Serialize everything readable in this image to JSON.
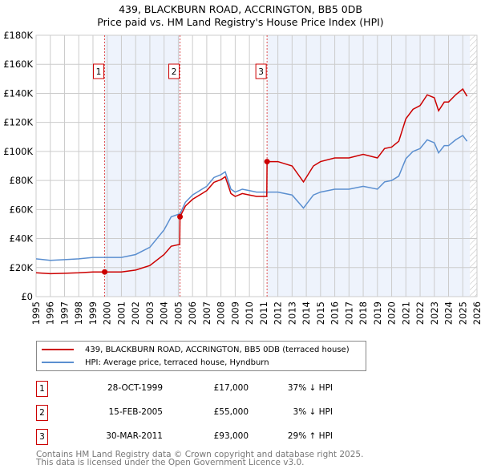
{
  "chart_data": {
    "type": "line",
    "title": "439, BLACKBURN ROAD, ACCRINGTON, BB5 0DB",
    "subtitle": "Price paid vs. HM Land Registry's House Price Index (HPI)",
    "xlim": [
      1995,
      2026
    ],
    "ylim": [
      0,
      180000
    ],
    "y_ticks": [
      0,
      20000,
      40000,
      60000,
      80000,
      100000,
      120000,
      140000,
      160000,
      180000
    ],
    "y_tick_labels": [
      "£0",
      "£20K",
      "£40K",
      "£60K",
      "£80K",
      "£100K",
      "£120K",
      "£140K",
      "£160K",
      "£180K"
    ],
    "x_tick_labels": [
      "1995",
      "1996",
      "1997",
      "1998",
      "1999",
      "2000",
      "2001",
      "2002",
      "2003",
      "2004",
      "2005",
      "2006",
      "2007",
      "2008",
      "2009",
      "2010",
      "2011",
      "2012",
      "2013",
      "2014",
      "2015",
      "2016",
      "2017",
      "2018",
      "2019",
      "2020",
      "2021",
      "2022",
      "2023",
      "2024",
      "2025",
      "2026"
    ],
    "grid": true,
    "x": [
      1995,
      1996,
      1997,
      1998,
      1999,
      1999.82,
      2000,
      2001,
      2002,
      2003,
      2004,
      2004.5,
      2005.1,
      2005.12,
      2005.5,
      2006,
      2007,
      2007.5,
      2008,
      2008.3,
      2008.7,
      2009,
      2009.5,
      2010,
      2010.5,
      2011.22,
      2011.24,
      2012,
      2013,
      2013.8,
      2014.5,
      2015,
      2016,
      2017,
      2018,
      2019,
      2019.5,
      2020,
      2020.5,
      2021,
      2021.5,
      2022,
      2022.5,
      2023,
      2023.3,
      2023.7,
      2024,
      2024.5,
      2025,
      2025.3
    ],
    "series": [
      {
        "name": "439, BLACKBURN ROAD, ACCRINGTON, BB5 0DB (terraced house)",
        "color": "#cc0000",
        "values": [
          16400,
          15800,
          16100,
          16400,
          17000,
          17000,
          17000,
          17000,
          18300,
          21400,
          29000,
          34700,
          36000,
          55000,
          62400,
          67000,
          73000,
          78700,
          80600,
          82600,
          71000,
          69000,
          71000,
          70000,
          69000,
          69000,
          93000,
          93000,
          90000,
          79000,
          90000,
          93000,
          95500,
          95500,
          98000,
          95500,
          102000,
          103000,
          107000,
          122500,
          129000,
          131600,
          139000,
          137000,
          128000,
          134000,
          134000,
          139000,
          143000,
          138000
        ]
      },
      {
        "name": "HPI: Average price, terraced house, Hyndburn",
        "color": "#5b8fd0",
        "values": [
          26000,
          25000,
          25500,
          26000,
          27000,
          27000,
          27000,
          27000,
          29000,
          34000,
          46000,
          55000,
          57000,
          57000,
          65000,
          70000,
          76000,
          82000,
          84000,
          86000,
          74000,
          72000,
          74000,
          73000,
          72000,
          72000,
          72000,
          72000,
          70000,
          61000,
          70000,
          72000,
          74000,
          74000,
          76000,
          74000,
          79000,
          80000,
          83000,
          95000,
          100000,
          102000,
          108000,
          106000,
          99000,
          104000,
          104000,
          108000,
          111000,
          107000
        ]
      }
    ],
    "sales": [
      {
        "label": "1",
        "x": 1999.82,
        "price": 17000,
        "date": "28-OCT-1999",
        "price_text": "£17,000",
        "hpi_text": "37% ↓ HPI"
      },
      {
        "label": "2",
        "x": 2005.12,
        "price": 55000,
        "date": "15-FEB-2005",
        "price_text": "£55,000",
        "hpi_text": "3% ↓ HPI"
      },
      {
        "label": "3",
        "x": 2011.24,
        "price": 93000,
        "date": "30-MAR-2011",
        "price_text": "£93,000",
        "hpi_text": "29% ↑ HPI"
      }
    ],
    "shaded_periods": [
      [
        1999.82,
        2005.12
      ],
      [
        2011.24,
        2025.5
      ]
    ],
    "forecast_hatch_from": 2025.5,
    "legend_placement": "below"
  },
  "footer": {
    "line1": "Contains HM Land Registry data © Crown copyright and database right 2025.",
    "line2": "This data is licensed under the Open Government Licence v3.0."
  }
}
